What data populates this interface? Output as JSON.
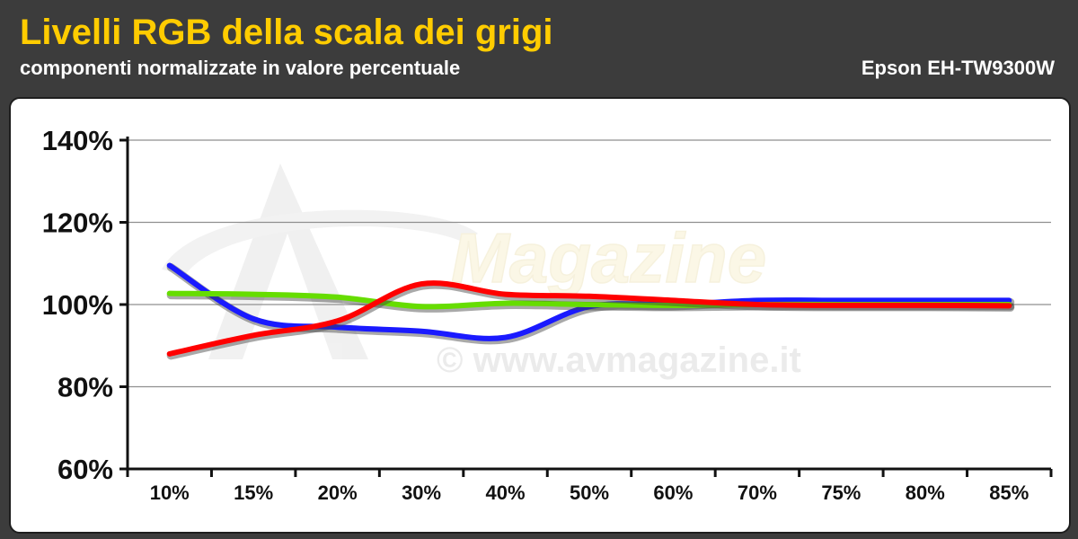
{
  "header": {
    "title": "Livelli RGB della scala dei grigi",
    "subtitle": "componenti normalizzate in valore percentuale",
    "device": "Epson EH-TW9300W"
  },
  "watermark": {
    "brand": "AV Magazine",
    "url": "© www.avmagazine.it"
  },
  "colors": {
    "title": "#ffcc00",
    "header_bg": "#3c3c3c",
    "blue": "#1a1aff",
    "green": "#66dd00",
    "red": "#ff0000"
  },
  "chart_data": {
    "type": "line",
    "title": "Livelli RGB della scala dei grigi",
    "subtitle": "componenti normalizzate in valore percentuale",
    "categories": [
      "10%",
      "15%",
      "20%",
      "30%",
      "40%",
      "50%",
      "60%",
      "70%",
      "75%",
      "80%",
      "85%"
    ],
    "y_ticks": [
      "60%",
      "80%",
      "100%",
      "120%",
      "140%"
    ],
    "ylim": [
      60,
      140
    ],
    "grid": true,
    "series": [
      {
        "color": "#1a1aff",
        "values": [
          109.5,
          96.5,
          94.5,
          93.5,
          92,
          99.5,
          100,
          101,
          101,
          101,
          101
        ]
      },
      {
        "color": "#66dd00",
        "values": [
          102.7,
          102.5,
          101.8,
          99.5,
          100.3,
          100,
          99.8,
          100,
          100,
          100,
          100
        ]
      },
      {
        "color": "#ff0000",
        "values": [
          88,
          92.5,
          96,
          105,
          102.5,
          102,
          101,
          100,
          99.8,
          99.8,
          99.7
        ]
      }
    ]
  }
}
